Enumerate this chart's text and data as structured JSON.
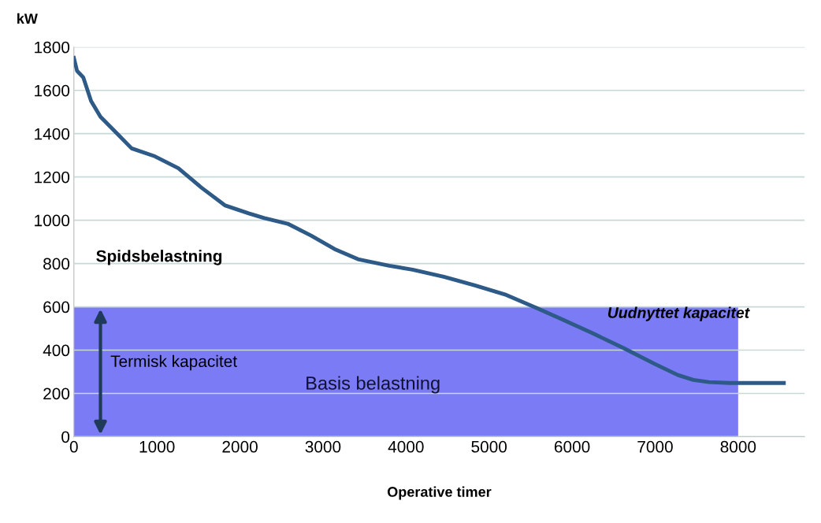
{
  "chart_data": {
    "type": "line",
    "ylabel": "kW",
    "xlabel": "Operative timer",
    "x": [
      0,
      38,
      113,
      207,
      320,
      508,
      695,
      977,
      1259,
      1541,
      1823,
      2105,
      2293,
      2575,
      2857,
      3139,
      3421,
      3797,
      4079,
      4455,
      4831,
      5207,
      5583,
      5865,
      6241,
      6617,
      6992,
      7274,
      7462,
      7650,
      7900,
      8550
    ],
    "series": [
      {
        "type": "area",
        "name": "Basis belastning",
        "x": [
          0,
          8000
        ],
        "values": [
          600,
          600
        ],
        "color": "#7b7bf5"
      },
      {
        "color": "#2e5a87",
        "values": [
          1750,
          1690,
          1660,
          1551,
          1478,
          1405,
          1332,
          1295,
          1240,
          1149,
          1068,
          1032,
          1010,
          984,
          929,
          867,
          820,
          790,
          772,
          739,
          699,
          655,
          593,
          545,
          479,
          410,
          337,
          285,
          262,
          252,
          248,
          248
        ]
      }
    ],
    "xlim": [
      0,
      8800
    ],
    "ylim": [
      0,
      1800
    ],
    "xticks": [
      0,
      1000,
      2000,
      3000,
      4000,
      5000,
      6000,
      7000,
      8000
    ],
    "yticks": [
      0,
      200,
      400,
      600,
      800,
      1000,
      1200,
      1400,
      1600,
      1800
    ],
    "grid": "y",
    "marker": "none",
    "line_style": "solid",
    "annotations": [
      "Spidsbelastning",
      "Termisk kapacitet",
      "Uudnyttet kapacitet"
    ]
  }
}
